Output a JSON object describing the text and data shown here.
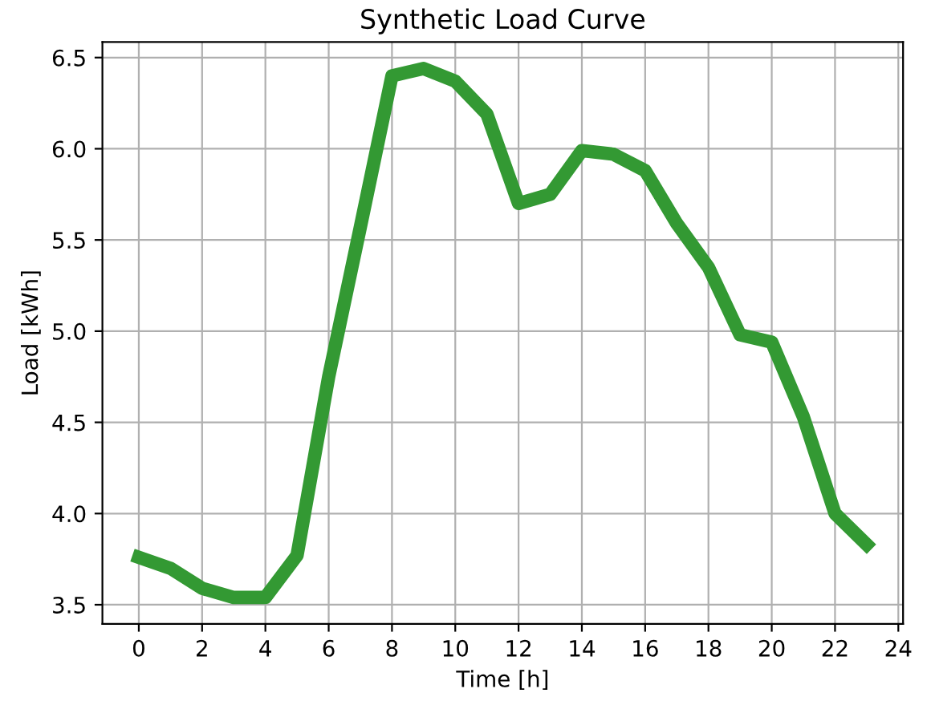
{
  "chart_data": {
    "type": "line",
    "title": "Synthetic Load Curve",
    "xlabel": "Time [h]",
    "ylabel": "Load [kWh]",
    "x": [
      0,
      1,
      2,
      3,
      4,
      5,
      6,
      7,
      8,
      9,
      10,
      11,
      12,
      13,
      14,
      15,
      16,
      17,
      18,
      19,
      20,
      21,
      22,
      23
    ],
    "series": [
      {
        "color": "#339933",
        "values": [
          3.76,
          3.7,
          3.59,
          3.54,
          3.54,
          3.77,
          4.75,
          5.57,
          6.4,
          6.44,
          6.37,
          6.19,
          5.7,
          5.75,
          5.99,
          5.97,
          5.88,
          5.59,
          5.35,
          4.98,
          4.94,
          4.53,
          4.0,
          3.83
        ]
      }
    ],
    "xlim": [
      -1.15,
      24.15
    ],
    "ylim": [
      3.395,
      6.585
    ],
    "xticks": [
      0,
      2,
      4,
      6,
      8,
      10,
      12,
      14,
      16,
      18,
      20,
      22,
      24
    ],
    "yticks": [
      {
        "value": 3.5,
        "label": "3.5"
      },
      {
        "value": 4.0,
        "label": "4.0"
      },
      {
        "value": 4.5,
        "label": "4.5"
      },
      {
        "value": 5.0,
        "label": "5.0"
      },
      {
        "value": 5.5,
        "label": "5.5"
      },
      {
        "value": 6.0,
        "label": "6.0"
      },
      {
        "value": 6.5,
        "label": "6.5"
      }
    ],
    "grid": true,
    "legend": false
  }
}
